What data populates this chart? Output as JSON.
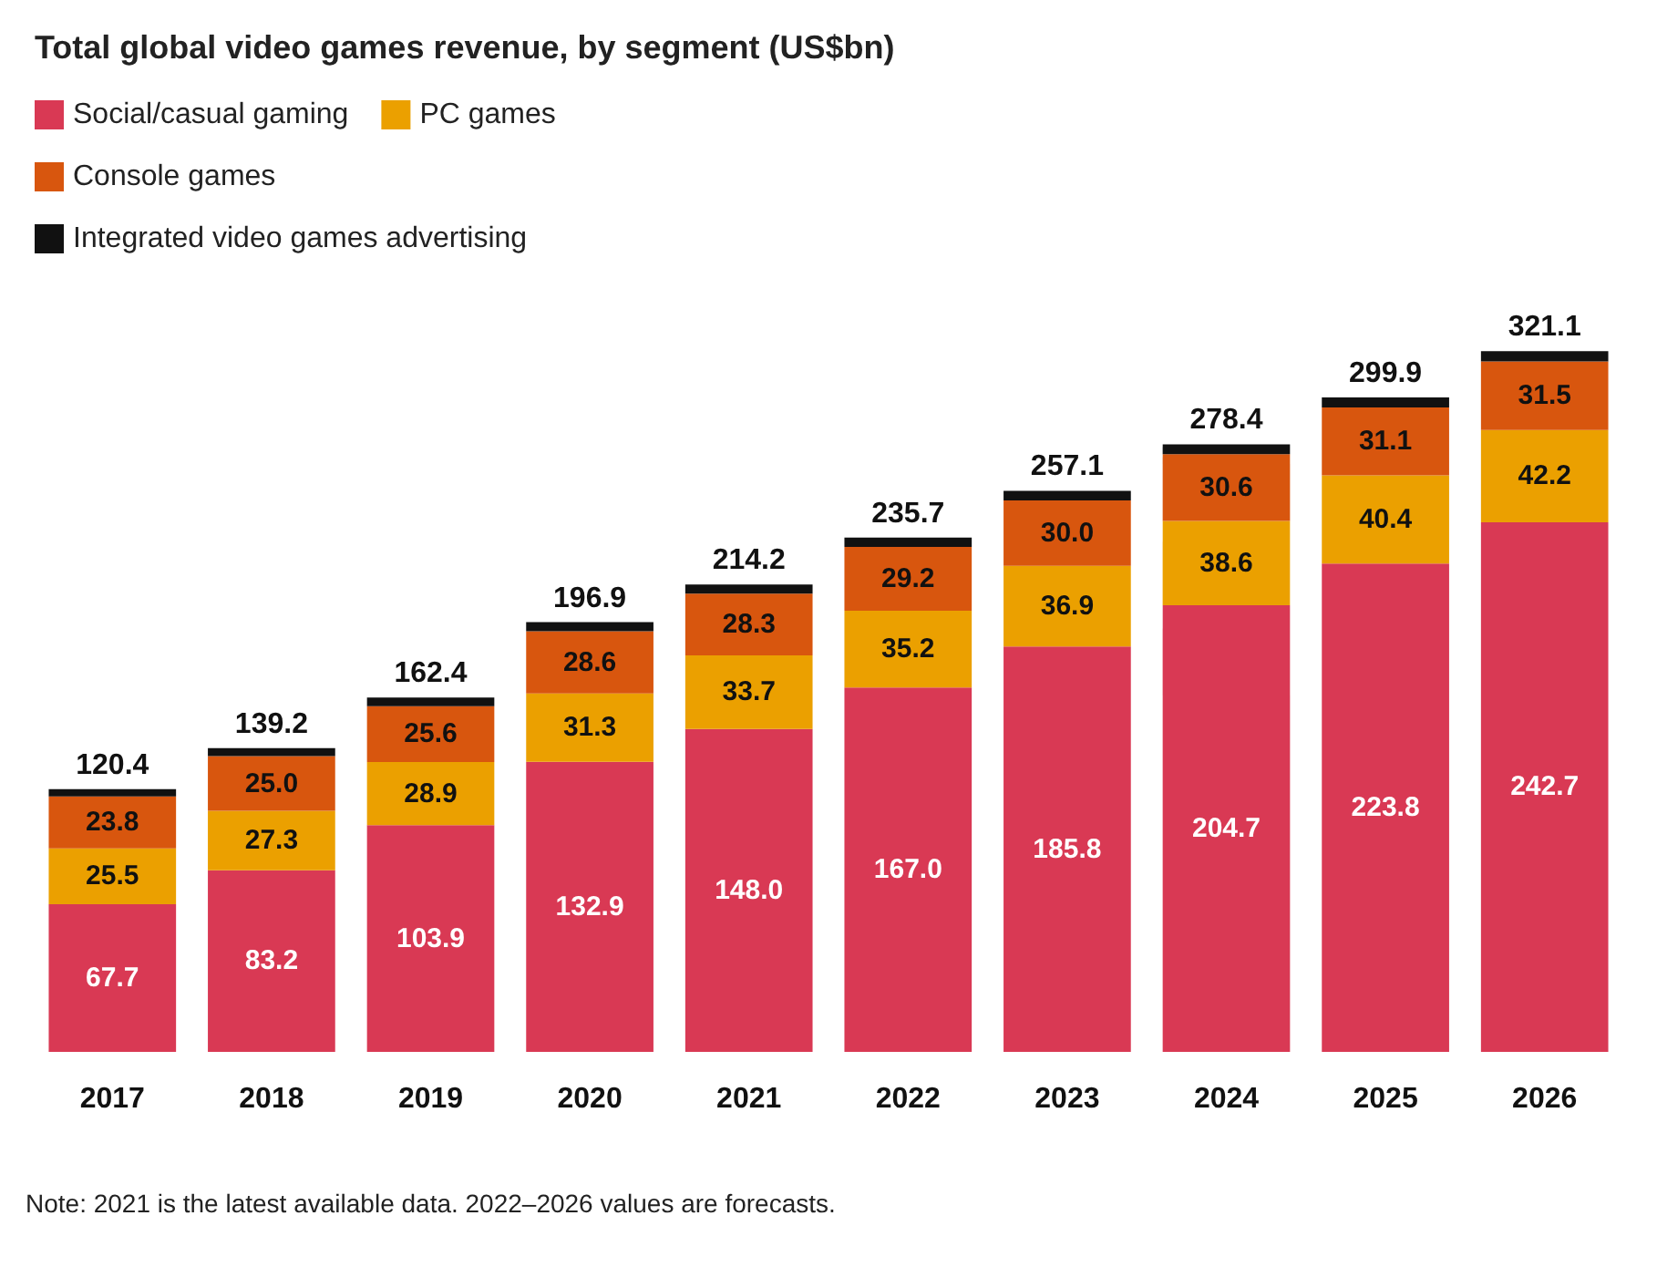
{
  "chart_data": {
    "type": "bar",
    "title": "Total global video games revenue, by segment (US$bn)",
    "stacked": true,
    "legend": "top left",
    "categories": [
      "2017",
      "2018",
      "2019",
      "2020",
      "2021",
      "2022",
      "2023",
      "2024",
      "2025",
      "2026"
    ],
    "series": [
      {
        "name": "Social/casual gaming",
        "color": "#d93954",
        "values": [
          67.7,
          83.2,
          103.9,
          132.9,
          148.0,
          167.0,
          185.8,
          204.7,
          223.8,
          242.7
        ],
        "value_labels": [
          "67.7",
          "83.2",
          "103.9",
          "132.9",
          "148.0",
          "167.0",
          "185.8",
          "204.7",
          "223.8",
          "242.7"
        ]
      },
      {
        "name": "PC games",
        "color": "#eba000",
        "values": [
          25.5,
          27.3,
          28.9,
          31.3,
          33.7,
          35.2,
          36.9,
          38.6,
          40.4,
          42.2
        ],
        "value_labels": [
          "25.5",
          "27.3",
          "28.9",
          "31.3",
          "33.7",
          "35.2",
          "36.9",
          "38.6",
          "40.4",
          "42.2"
        ]
      },
      {
        "name": "Console games",
        "color": "#d8560e",
        "values": [
          23.8,
          25.0,
          25.6,
          28.6,
          28.3,
          29.2,
          30.0,
          30.6,
          31.1,
          31.5
        ],
        "value_labels": [
          "23.8",
          "25.0",
          "25.6",
          "28.6",
          "28.3",
          "29.2",
          "30.0",
          "30.6",
          "31.1",
          "31.5"
        ]
      },
      {
        "name": "Integrated video games advertising",
        "color": "#111111",
        "values": [
          3.4,
          3.7,
          4.0,
          4.1,
          4.2,
          4.3,
          4.4,
          4.5,
          4.6,
          4.7
        ]
      }
    ],
    "totals": [
      "120.4",
      "139.2",
      "162.4",
      "196.9",
      "214.2",
      "235.7",
      "257.1",
      "278.4",
      "299.9",
      "321.1"
    ],
    "annotations": [
      "Note: 2021 is the latest available data. 2022–2026 values are forecasts."
    ]
  }
}
